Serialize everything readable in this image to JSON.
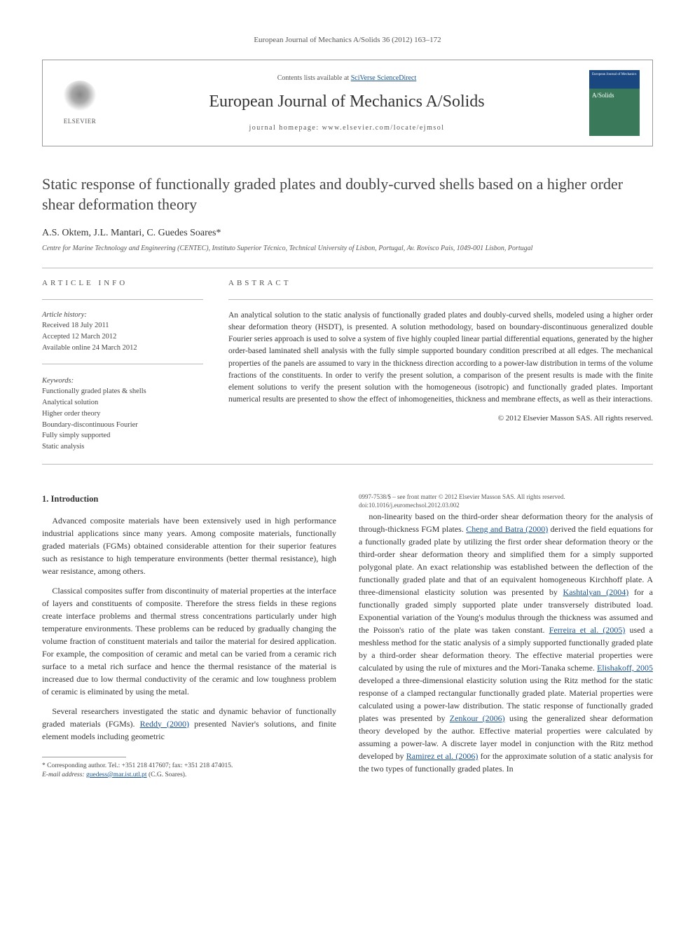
{
  "journal_ref": "European Journal of Mechanics A/Solids 36 (2012) 163–172",
  "header": {
    "contents_prefix": "Contents lists available at ",
    "contents_link": "SciVerse ScienceDirect",
    "journal_name": "European Journal of Mechanics A/Solids",
    "homepage_prefix": "journal homepage: ",
    "homepage_url": "www.elsevier.com/locate/ejmsol",
    "elsevier": "ELSEVIER",
    "cover_top": "European Journal of Mechanics",
    "cover_mid": "A/Solids"
  },
  "title": "Static response of functionally graded plates and doubly-curved shells based on a higher order shear deformation theory",
  "authors": "A.S. Oktem, J.L. Mantari, C. Guedes Soares*",
  "affiliation": "Centre for Marine Technology and Engineering (CENTEC), Instituto Superior Técnico, Technical University of Lisbon, Portugal, Av. Rovisco Pais, 1049-001 Lisbon, Portugal",
  "article_info": {
    "heading": "ARTICLE INFO",
    "history_label": "Article history:",
    "received": "Received 18 July 2011",
    "accepted": "Accepted 12 March 2012",
    "online": "Available online 24 March 2012",
    "keywords_label": "Keywords:",
    "keywords": [
      "Functionally graded plates & shells",
      "Analytical solution",
      "Higher order theory",
      "Boundary-discontinuous Fourier",
      "Fully simply supported",
      "Static analysis"
    ]
  },
  "abstract": {
    "heading": "ABSTRACT",
    "text": "An analytical solution to the static analysis of functionally graded plates and doubly-curved shells, modeled using a higher order shear deformation theory (HSDT), is presented. A solution methodology, based on boundary-discontinuous generalized double Fourier series approach is used to solve a system of five highly coupled linear partial differential equations, generated by the higher order-based laminated shell analysis with the fully simple supported boundary condition prescribed at all edges. The mechanical properties of the panels are assumed to vary in the thickness direction according to a power-law distribution in terms of the volume fractions of the constituents. In order to verify the present solution, a comparison of the present results is made with the finite element solutions to verify the present solution with the homogeneous (isotropic) and functionally graded plates. Important numerical results are presented to show the effect of inhomogeneities, thickness and membrane effects, as well as their interactions.",
    "copyright": "© 2012 Elsevier Masson SAS. All rights reserved."
  },
  "body": {
    "section_heading": "1. Introduction",
    "p1": "Advanced composite materials have been extensively used in high performance industrial applications since many years. Among composite materials, functionally graded materials (FGMs) obtained considerable attention for their superior features such as resistance to high temperature environments (better thermal resistance), high wear resistance, among others.",
    "p2": "Classical composites suffer from discontinuity of material properties at the interface of layers and constituents of composite. Therefore the stress fields in these regions create interface problems and thermal stress concentrations particularly under high temperature environments. These problems can be reduced by gradually changing the volume fraction of constituent materials and tailor the material for desired application. For example, the composition of ceramic and metal can be varied from a ceramic rich surface to a metal rich surface and hence the thermal resistance of the material is increased due to low thermal conductivity of the ceramic and low toughness problem of ceramic is eliminated by using the metal.",
    "p3a": "Several researchers investigated the static and dynamic behavior of functionally graded materials (FGMs). ",
    "ref1": "Reddy (2000)",
    "p3b": " presented Navier's solutions, and finite element models including geometric ",
    "p4a": "non-linearity based on the third-order shear deformation theory for the analysis of through-thickness FGM plates. ",
    "ref2": "Cheng and Batra (2000)",
    "p4b": " derived the field equations for a functionally graded plate by utilizing the first order shear deformation theory or the third-order shear deformation theory and simplified them for a simply supported polygonal plate. An exact relationship was established between the deflection of the functionally graded plate and that of an equivalent homogeneous Kirchhoff plate. A three-dimensional elasticity solution was presented by ",
    "ref3": "Kashtalyan (2004)",
    "p4c": " for a functionally graded simply supported plate under transversely distributed load. Exponential variation of the Young's modulus through the thickness was assumed and the Poisson's ratio of the plate was taken constant. ",
    "ref4": "Ferreira et al. (2005)",
    "p4d": " used a meshless method for the static analysis of a simply supported functionally graded plate by a third-order shear deformation theory. The effective material properties were calculated by using the rule of mixtures and the Mori-Tanaka scheme. ",
    "ref5": "Elishakoff, 2005",
    "p4e": " developed a three-dimensional elasticity solution using the Ritz method for the static response of a clamped rectangular functionally graded plate. Material properties were calculated using a power-law distribution. The static response of functionally graded plates was presented by ",
    "ref6": "Zenkour (2006)",
    "p4f": " using the generalized shear deformation theory developed by the author. Effective material properties were calculated by assuming a power-law. A discrete layer model in conjunction with the Ritz method developed by ",
    "ref7": "Ramirez et al. (2006)",
    "p4g": " for the approximate solution of a static analysis for the two types of functionally graded plates. In"
  },
  "footnote": {
    "corr": "* Corresponding author. Tel.: +351 218 417607; fax: +351 218 474015.",
    "email_label": "E-mail address: ",
    "email": "guedess@mar.ist.utl.pt",
    "email_suffix": " (C.G. Soares)."
  },
  "front_matter": {
    "line1": "0997-7538/$ – see front matter © 2012 Elsevier Masson SAS. All rights reserved.",
    "line2": "doi:10.1016/j.euromechsol.2012.03.002"
  },
  "colors": {
    "link": "#1a5490",
    "text": "#333333",
    "muted": "#555555",
    "border": "#999999",
    "cover_top": "#1a4780",
    "cover_bottom": "#3a7a5a"
  }
}
